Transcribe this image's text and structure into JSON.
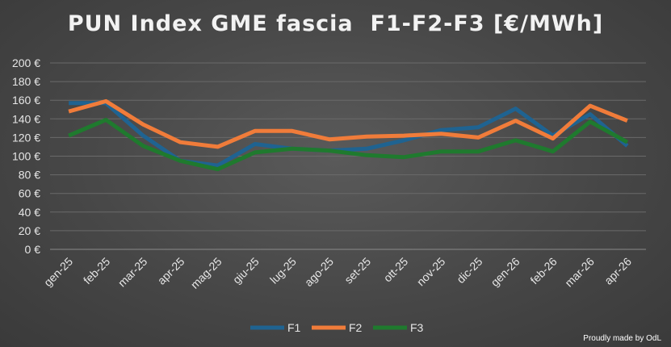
{
  "chart_data": {
    "type": "line",
    "title": "PUN Index GME fascia  F1-F2-F3 [€/MWh]",
    "categories": [
      "gen-25",
      "feb-25",
      "mar-25",
      "apr-25",
      "mag-25",
      "giu-25",
      "lug-25",
      "ago-25",
      "set-25",
      "ott-25",
      "nov-25",
      "dic-25",
      "gen-26",
      "feb-26",
      "mar-26",
      "apr-26"
    ],
    "y_ticks": [
      "0 €",
      "20 €",
      "40 €",
      "60 €",
      "80 €",
      "100 €",
      "120 €",
      "140 €",
      "160 €",
      "180 €",
      "200 €"
    ],
    "ylim": [
      0,
      200
    ],
    "grid": true,
    "legend_position": "bottom",
    "series": [
      {
        "name": "F1",
        "color": "#1f6391",
        "values": [
          157,
          157,
          122,
          95,
          90,
          113,
          108,
          106,
          108,
          117,
          128,
          131,
          151,
          122,
          145,
          111
        ]
      },
      {
        "name": "F2",
        "color": "#f07c3a",
        "values": [
          148,
          159,
          134,
          115,
          110,
          127,
          127,
          118,
          121,
          122,
          124,
          120,
          138,
          119,
          154,
          138
        ]
      },
      {
        "name": "F3",
        "color": "#1f7a2e",
        "values": [
          122,
          139,
          111,
          95,
          86,
          104,
          108,
          106,
          101,
          99,
          105,
          105,
          117,
          105,
          137,
          115
        ]
      }
    ]
  },
  "credit": "Proudly made by OdL"
}
